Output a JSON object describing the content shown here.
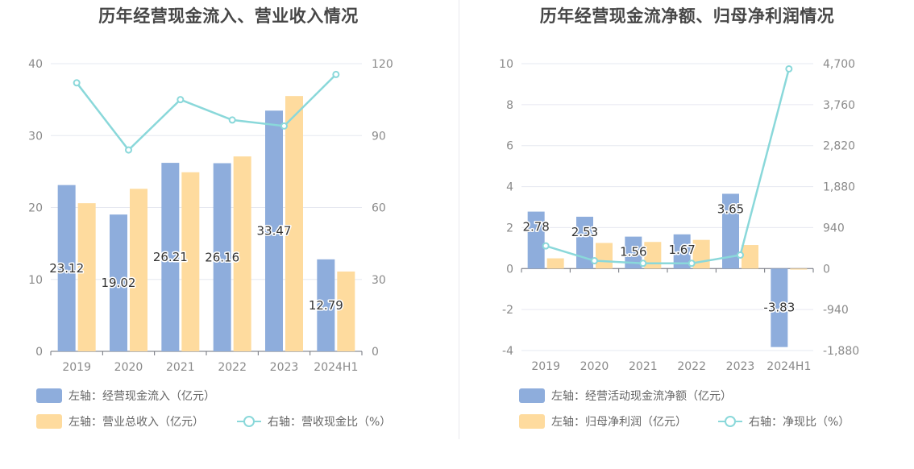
{
  "colors": {
    "bar1": "#8eaddc",
    "bar2": "#fedb9e",
    "line": "#8ad8da",
    "grid": "#e6e8f0",
    "axis_text": "#8a8a8a"
  },
  "chart_data": [
    {
      "type": "bar",
      "title": "历年经营现金流入、营业收入情况",
      "categories": [
        "2019",
        "2020",
        "2021",
        "2022",
        "2023",
        "2024H1"
      ],
      "y_left": {
        "min": 0,
        "max": 40,
        "ticks": [
          "0",
          "10",
          "20",
          "30",
          "40"
        ]
      },
      "y_right": {
        "min": 0,
        "max": 120,
        "ticks": [
          "0",
          "30",
          "60",
          "90",
          "120"
        ]
      },
      "series": [
        {
          "name": "左轴：经营现金流入（亿元）",
          "kind": "bar",
          "axis": "left",
          "values": [
            23.12,
            19.02,
            26.21,
            26.16,
            33.47,
            12.79
          ],
          "labels": [
            "23.12",
            "19.02",
            "26.21",
            "26.16",
            "33.47",
            "12.79"
          ]
        },
        {
          "name": "左轴：营业总收入（亿元）",
          "kind": "bar",
          "axis": "left",
          "values": [
            20.6,
            22.6,
            24.9,
            27.1,
            35.5,
            11.1
          ]
        },
        {
          "name": "右轴：营收现金比（%）",
          "kind": "line",
          "axis": "right",
          "values": [
            112,
            84,
            105,
            96.5,
            94,
            115.5
          ]
        }
      ],
      "legend": [
        "左轴：经营现金流入（亿元）",
        "左轴：营业总收入（亿元）",
        "右轴：营收现金比（%）"
      ]
    },
    {
      "type": "bar",
      "title": "历年经营现金流净额、归母净利润情况",
      "categories": [
        "2019",
        "2020",
        "2021",
        "2022",
        "2023",
        "2024H1"
      ],
      "y_left": {
        "min": -4,
        "max": 10,
        "ticks": [
          "-4",
          "-2",
          "0",
          "2",
          "4",
          "6",
          "8",
          "10"
        ]
      },
      "y_right": {
        "min": -1880,
        "max": 4700,
        "ticks": [
          "-1,880",
          "-940",
          "0",
          "940",
          "1,880",
          "2,820",
          "3,760",
          "4,700"
        ]
      },
      "series": [
        {
          "name": "左轴：经营活动现金流净额（亿元）",
          "kind": "bar",
          "axis": "left",
          "values": [
            2.78,
            2.53,
            1.56,
            1.67,
            3.65,
            -3.83
          ],
          "labels": [
            "2.78",
            "2.53",
            "1.56",
            "1.67",
            "3.65",
            "-3.83"
          ]
        },
        {
          "name": "左轴：归母净利润（亿元）",
          "kind": "bar",
          "axis": "left",
          "values": [
            0.5,
            1.25,
            1.3,
            1.4,
            1.15,
            -0.05
          ]
        },
        {
          "name": "右轴：净现比（%）",
          "kind": "line",
          "axis": "right",
          "values": [
            520,
            180,
            120,
            120,
            310,
            4580
          ]
        }
      ],
      "legend": [
        "左轴：经营活动现金流净额（亿元）",
        "左轴：归母净利润（亿元）",
        "右轴：净现比（%）"
      ]
    }
  ]
}
